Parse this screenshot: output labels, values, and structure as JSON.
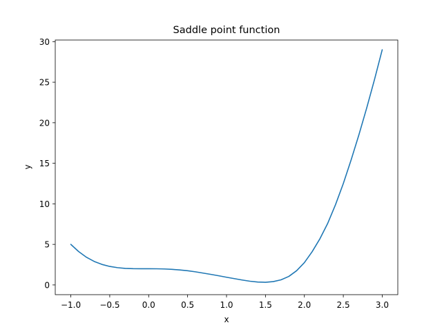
{
  "chart_data": {
    "type": "line",
    "title": "Saddle point function",
    "xlabel": "x",
    "ylabel": "y",
    "xlim": [
      -1.2,
      3.2
    ],
    "ylim": [
      -1.2,
      30.2
    ],
    "x_ticks": [
      -1.0,
      -0.5,
      0.0,
      0.5,
      1.0,
      1.5,
      2.0,
      2.5,
      3.0
    ],
    "x_tick_labels": [
      "−1.0",
      "−0.5",
      "0.0",
      "0.5",
      "1.0",
      "1.5",
      "2.0",
      "2.5",
      "3.0"
    ],
    "y_ticks": [
      0,
      5,
      10,
      15,
      20,
      25,
      30
    ],
    "y_tick_labels": [
      "0",
      "5",
      "10",
      "15",
      "20",
      "25",
      "30"
    ],
    "grid": false,
    "legend": "none",
    "series": [
      {
        "color": "#1f77b4",
        "x": [
          -1.0,
          -0.9,
          -0.8,
          -0.7,
          -0.6,
          -0.5,
          -0.4,
          -0.3,
          -0.2,
          -0.1,
          0.0,
          0.1,
          0.2,
          0.3,
          0.4,
          0.5,
          0.6,
          0.7,
          0.8,
          0.9,
          1.0,
          1.1,
          1.2,
          1.3,
          1.4,
          1.5,
          1.6,
          1.7,
          1.8,
          1.9,
          2.0,
          2.1,
          2.2,
          2.3,
          2.4,
          2.5,
          2.6,
          2.7,
          2.8,
          2.9,
          3.0
        ],
        "y": [
          5.0,
          4.12,
          3.42,
          2.9,
          2.53,
          2.28,
          2.13,
          2.04,
          2.01,
          2.0,
          2.0,
          1.99,
          1.97,
          1.92,
          1.85,
          1.75,
          1.62,
          1.46,
          1.3,
          1.13,
          0.95,
          0.78,
          0.61,
          0.46,
          0.36,
          0.33,
          0.41,
          0.63,
          1.05,
          1.75,
          2.75,
          4.1,
          5.7,
          7.6,
          9.9,
          12.5,
          15.4,
          18.5,
          21.8,
          25.3,
          29.0
        ]
      }
    ]
  },
  "colors": {
    "line": "#1f77b4",
    "axes": "#000000",
    "background": "#ffffff"
  }
}
